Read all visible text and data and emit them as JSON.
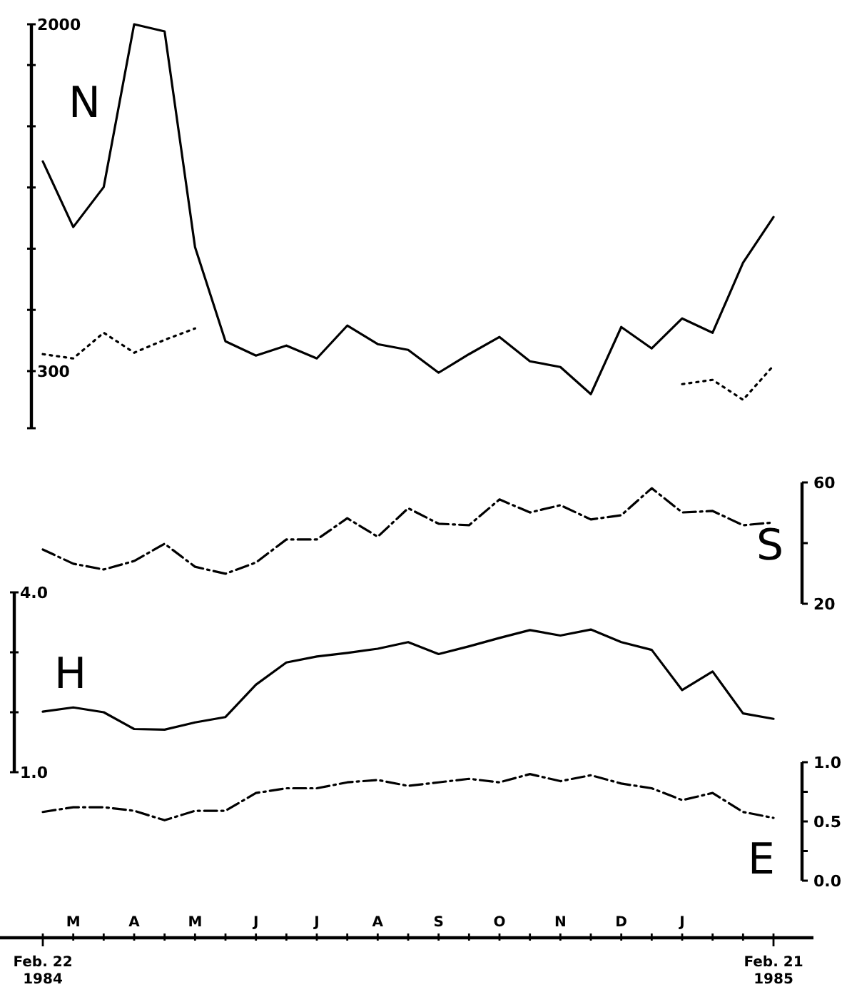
{
  "chart_data": [
    {
      "type": "line",
      "tick_labels": "y",
      "categories": [
        null,
        null,
        null,
        null,
        null,
        null,
        null,
        null,
        null,
        null,
        null,
        null,
        null,
        null,
        null,
        null,
        null,
        null,
        null,
        null,
        null,
        null,
        null,
        null,
        null
      ],
      "series": [
        {
          "name": "N",
          "color": "#000000",
          "line_style": "solid",
          "values": [
            1328,
            1006,
            1202,
            2000,
            1965,
            908,
            446,
            376,
            425,
            362,
            523,
            432,
            404,
            292,
            383,
            467,
            348,
            320,
            187,
            516,
            411,
            558,
            488,
            831,
            1055
          ]
        },
        {
          "color": "#000000",
          "line_style": "dotted",
          "values": [
            383,
            362,
            488,
            390,
            453,
            509,
            null,
            null,
            null,
            null,
            null,
            null,
            null,
            null,
            null,
            null,
            null,
            null,
            null,
            null,
            null,
            236,
            257,
            159,
            327
          ]
        }
      ],
      "ylim": [
        20,
        2000
      ],
      "yticks": [
        {
          "value": 20,
          "label": null
        },
        300,
        {
          "value": 600,
          "label": null
        },
        {
          "value": 900,
          "label": null
        },
        {
          "value": 1200,
          "label": null
        },
        {
          "value": 1500,
          "label": null
        },
        {
          "value": 1800,
          "label": null
        },
        2000
      ]
    },
    {
      "type": "line",
      "tick_labels": "y",
      "categories": [
        null,
        null,
        null,
        null,
        null,
        null,
        null,
        null,
        null,
        null,
        null,
        null,
        null,
        null,
        null,
        null,
        null,
        null,
        null,
        null,
        null,
        null,
        null,
        null,
        null
      ],
      "series": [
        {
          "name": "S",
          "color": "#000000",
          "line_style": "dashed",
          "values": [
            37.9,
            33.2,
            31.3,
            34.1,
            39.8,
            32.2,
            29.9,
            33.6,
            41.2,
            41.2,
            48.2,
            42.1,
            51.5,
            46.4,
            45.9,
            54.4,
            50.1,
            52.5,
            47.8,
            49.2,
            58.1,
            50.1,
            50.6,
            45.9,
            46.8
          ]
        }
      ],
      "ylim": [
        20,
        60
      ],
      "yticks": [
        20,
        {
          "value": 40,
          "label": null
        },
        60
      ]
    },
    {
      "type": "line",
      "tick_labels": "y",
      "categories": [
        null,
        null,
        null,
        null,
        null,
        null,
        null,
        null,
        null,
        null,
        null,
        null,
        null,
        null,
        null,
        null,
        null,
        null,
        null,
        null,
        null,
        null,
        null,
        null,
        null
      ],
      "series": [
        {
          "name": "H",
          "color": "#000000",
          "line_style": "solid",
          "values": [
            2.01,
            2.08,
            2.0,
            1.72,
            1.71,
            1.83,
            1.92,
            2.46,
            2.83,
            2.93,
            2.99,
            3.06,
            3.17,
            2.97,
            3.1,
            3.24,
            3.37,
            3.28,
            3.38,
            3.17,
            3.04,
            2.37,
            2.68,
            1.98,
            1.89
          ]
        }
      ],
      "ylim": [
        1,
        4
      ],
      "yticks": [
        {
          "value": 1,
          "label": "1.0"
        },
        {
          "value": 2,
          "label": null
        },
        {
          "value": 3,
          "label": null
        },
        {
          "value": 4,
          "label": "4.0"
        }
      ]
    },
    {
      "type": "line",
      "categories": [
        null,
        "M",
        null,
        "A",
        null,
        "M",
        null,
        "J",
        null,
        "J",
        null,
        "A",
        null,
        "S",
        null,
        "O",
        null,
        "N",
        null,
        "D",
        null,
        "J",
        null,
        null,
        null
      ],
      "series": [
        {
          "name": "E",
          "color": "#000000",
          "line_style": "dashed",
          "values": [
            0.58,
            0.62,
            0.62,
            0.59,
            0.51,
            0.59,
            0.59,
            0.74,
            0.78,
            0.78,
            0.83,
            0.85,
            0.8,
            0.83,
            0.86,
            0.83,
            0.9,
            0.84,
            0.89,
            0.82,
            0.78,
            0.68,
            0.74,
            0.58,
            0.53
          ]
        }
      ],
      "ylim": [
        0,
        1
      ],
      "yticks": [
        {
          "value": 0,
          "label": "0.0"
        },
        {
          "value": 0.25,
          "label": null
        },
        {
          "value": 0.5,
          "label": "0.5"
        },
        {
          "value": 0.75,
          "label": null
        },
        {
          "value": 1,
          "label": "1.0"
        }
      ],
      "annotations": [
        "Feb. 22 1984",
        "Feb. 21 1985"
      ]
    }
  ]
}
